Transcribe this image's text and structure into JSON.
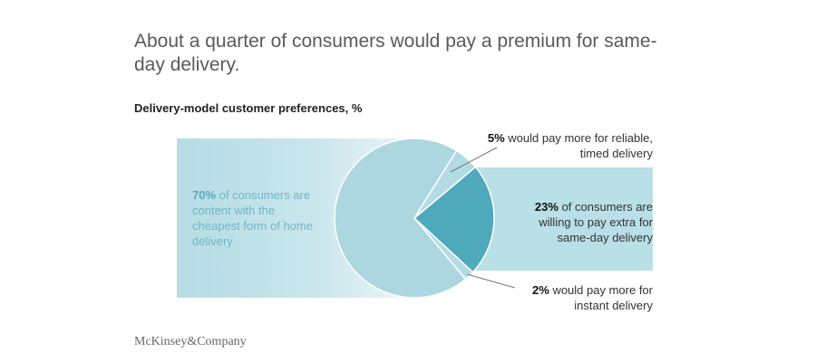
{
  "title": "About a quarter of consumers would pay a premium for same-day delivery.",
  "chart_data": {
    "type": "pie",
    "title": "Delivery-model customer preferences, %",
    "slices": [
      {
        "value": 23,
        "pct": "23%",
        "text": "of consumers are willing to pay extra for same-day delivery",
        "color": "#4ea9bb"
      },
      {
        "value": 2,
        "pct": "2%",
        "text": "would pay more for instant delivery",
        "color": "#b3dbe3"
      },
      {
        "value": 70,
        "pct": "70%",
        "text": "of consumers are content with the cheapest form of home delivery",
        "color": "#acd7e0"
      },
      {
        "value": 5,
        "pct": "5%",
        "text": "would pay more for reliable, timed delivery",
        "color": "#b3dbe3"
      }
    ]
  },
  "logo": "McKinsey&Company"
}
